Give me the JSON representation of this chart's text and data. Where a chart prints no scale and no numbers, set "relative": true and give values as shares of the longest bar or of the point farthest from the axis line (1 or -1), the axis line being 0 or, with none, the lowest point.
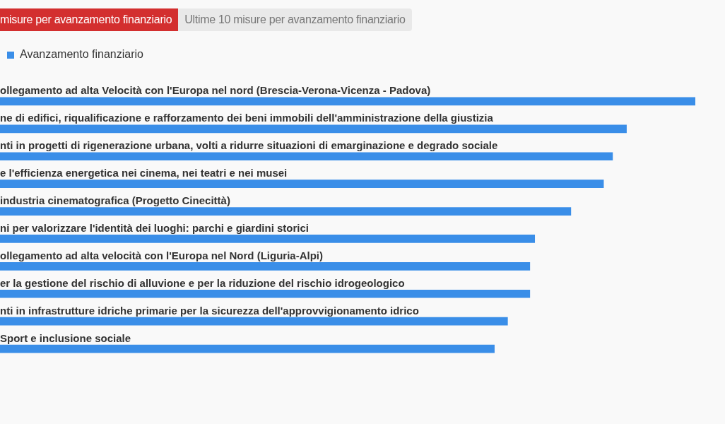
{
  "chart_data": {
    "type": "bar",
    "orientation": "horizontal",
    "relative": true,
    "legend": "top left",
    "annotations": [
      "misure per avanzamento finanziario",
      "Ultime 10 misure per avanzamento finanziario"
    ],
    "categories": [
      "ollegamento ad alta Velocità con l'Europa nel nord (Brescia-Verona-Vicenza - Padova)",
      "ne di edifici, riqualificazione e rafforzamento dei beni immobili dell'amministrazione della giustizia",
      "nti in progetti di rigenerazione urbana, volti a ridurre situazioni di emarginazione e degrado sociale",
      "e l'efficienza energetica nei cinema, nei teatri e nei musei",
      "industria cinematografica (Progetto Cinecittà)",
      "ni per valorizzare l'identità dei luoghi: parchi e giardini storici",
      "ollegamento ad alta velocità con l'Europa nel Nord (Liguria-Alpi)",
      "er la gestione del rischio di alluvione e per la riduzione del rischio idrogeologico",
      "nti in infrastrutture idriche primarie per la sicurezza dell'approvvigionamento idrico",
      "Sport e inclusione sociale"
    ],
    "series": [
      {
        "name": "Avanzamento finanziario",
        "color": "#3a8ee8",
        "values": [
          1,
          0.901,
          0.881,
          0.868,
          0.821,
          0.769,
          0.762,
          0.762,
          0.73,
          0.711
        ]
      }
    ]
  }
}
